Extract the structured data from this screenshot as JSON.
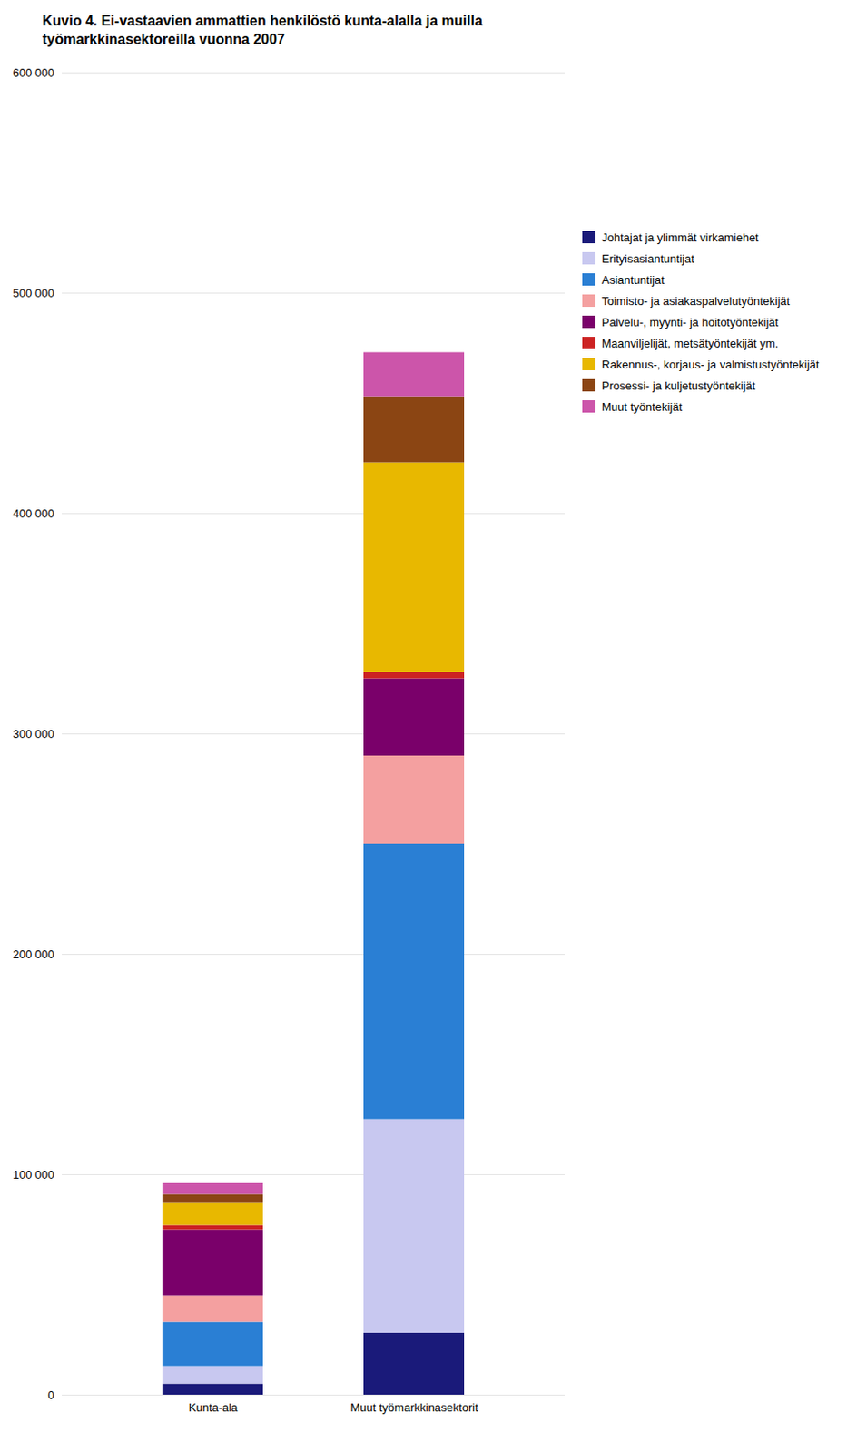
{
  "chart_data": {
    "type": "bar",
    "title": "Kuvio 4. Ei-vastaavien ammattien henkilöstö kunta-alalla ja muilla\ntyömarkkinasektoreilla vuonna 2007",
    "categories": [
      "Kunta-ala",
      "Muut työmarkkinasektorit"
    ],
    "series": [
      {
        "name": "Johtajat ja ylimmät virkamiehet",
        "color": "#1a1a7a",
        "values": [
          5000,
          28000
        ]
      },
      {
        "name": "Erityisasiantuntijat",
        "color": "#c8c8f0",
        "values": [
          8000,
          97000
        ]
      },
      {
        "name": "Asiantuntijat",
        "color": "#2a7fd4",
        "values": [
          20000,
          125000
        ]
      },
      {
        "name": "Toimisto- ja asiakaspalvelutyöntekijät",
        "color": "#f4a0a0",
        "values": [
          12000,
          40000
        ]
      },
      {
        "name": "Palvelu-, myynti- ja hoitotyöntekijät",
        "color": "#7a006a",
        "values": [
          30000,
          35000
        ]
      },
      {
        "name": "Maanviljelijät, metsätyöntekijät ym.",
        "color": "#cc2222",
        "values": [
          2000,
          3000
        ]
      },
      {
        "name": "Rakennus-, korjaus- ja valmistustyöntekijät",
        "color": "#e8b800",
        "values": [
          10000,
          95000
        ]
      },
      {
        "name": "Prosessi- ja kuljetustyöntekijät",
        "color": "#8b4513",
        "values": [
          4000,
          30000
        ]
      },
      {
        "name": "Muut työntekijät",
        "color": "#cc55aa",
        "values": [
          5000,
          20000
        ]
      }
    ],
    "ylim": [
      0,
      600000
    ],
    "yticks": [
      0,
      {
        "value": 100000,
        "label": "100 000"
      },
      {
        "value": 200000,
        "label": "200 000"
      },
      {
        "value": 300000,
        "label": "300 000"
      },
      {
        "value": 400000,
        "label": "400 000"
      },
      {
        "value": 500000,
        "label": "500 000"
      },
      {
        "value": 600000,
        "label": "600 000"
      }
    ],
    "grid": true,
    "stacked": true,
    "legend": "right"
  }
}
